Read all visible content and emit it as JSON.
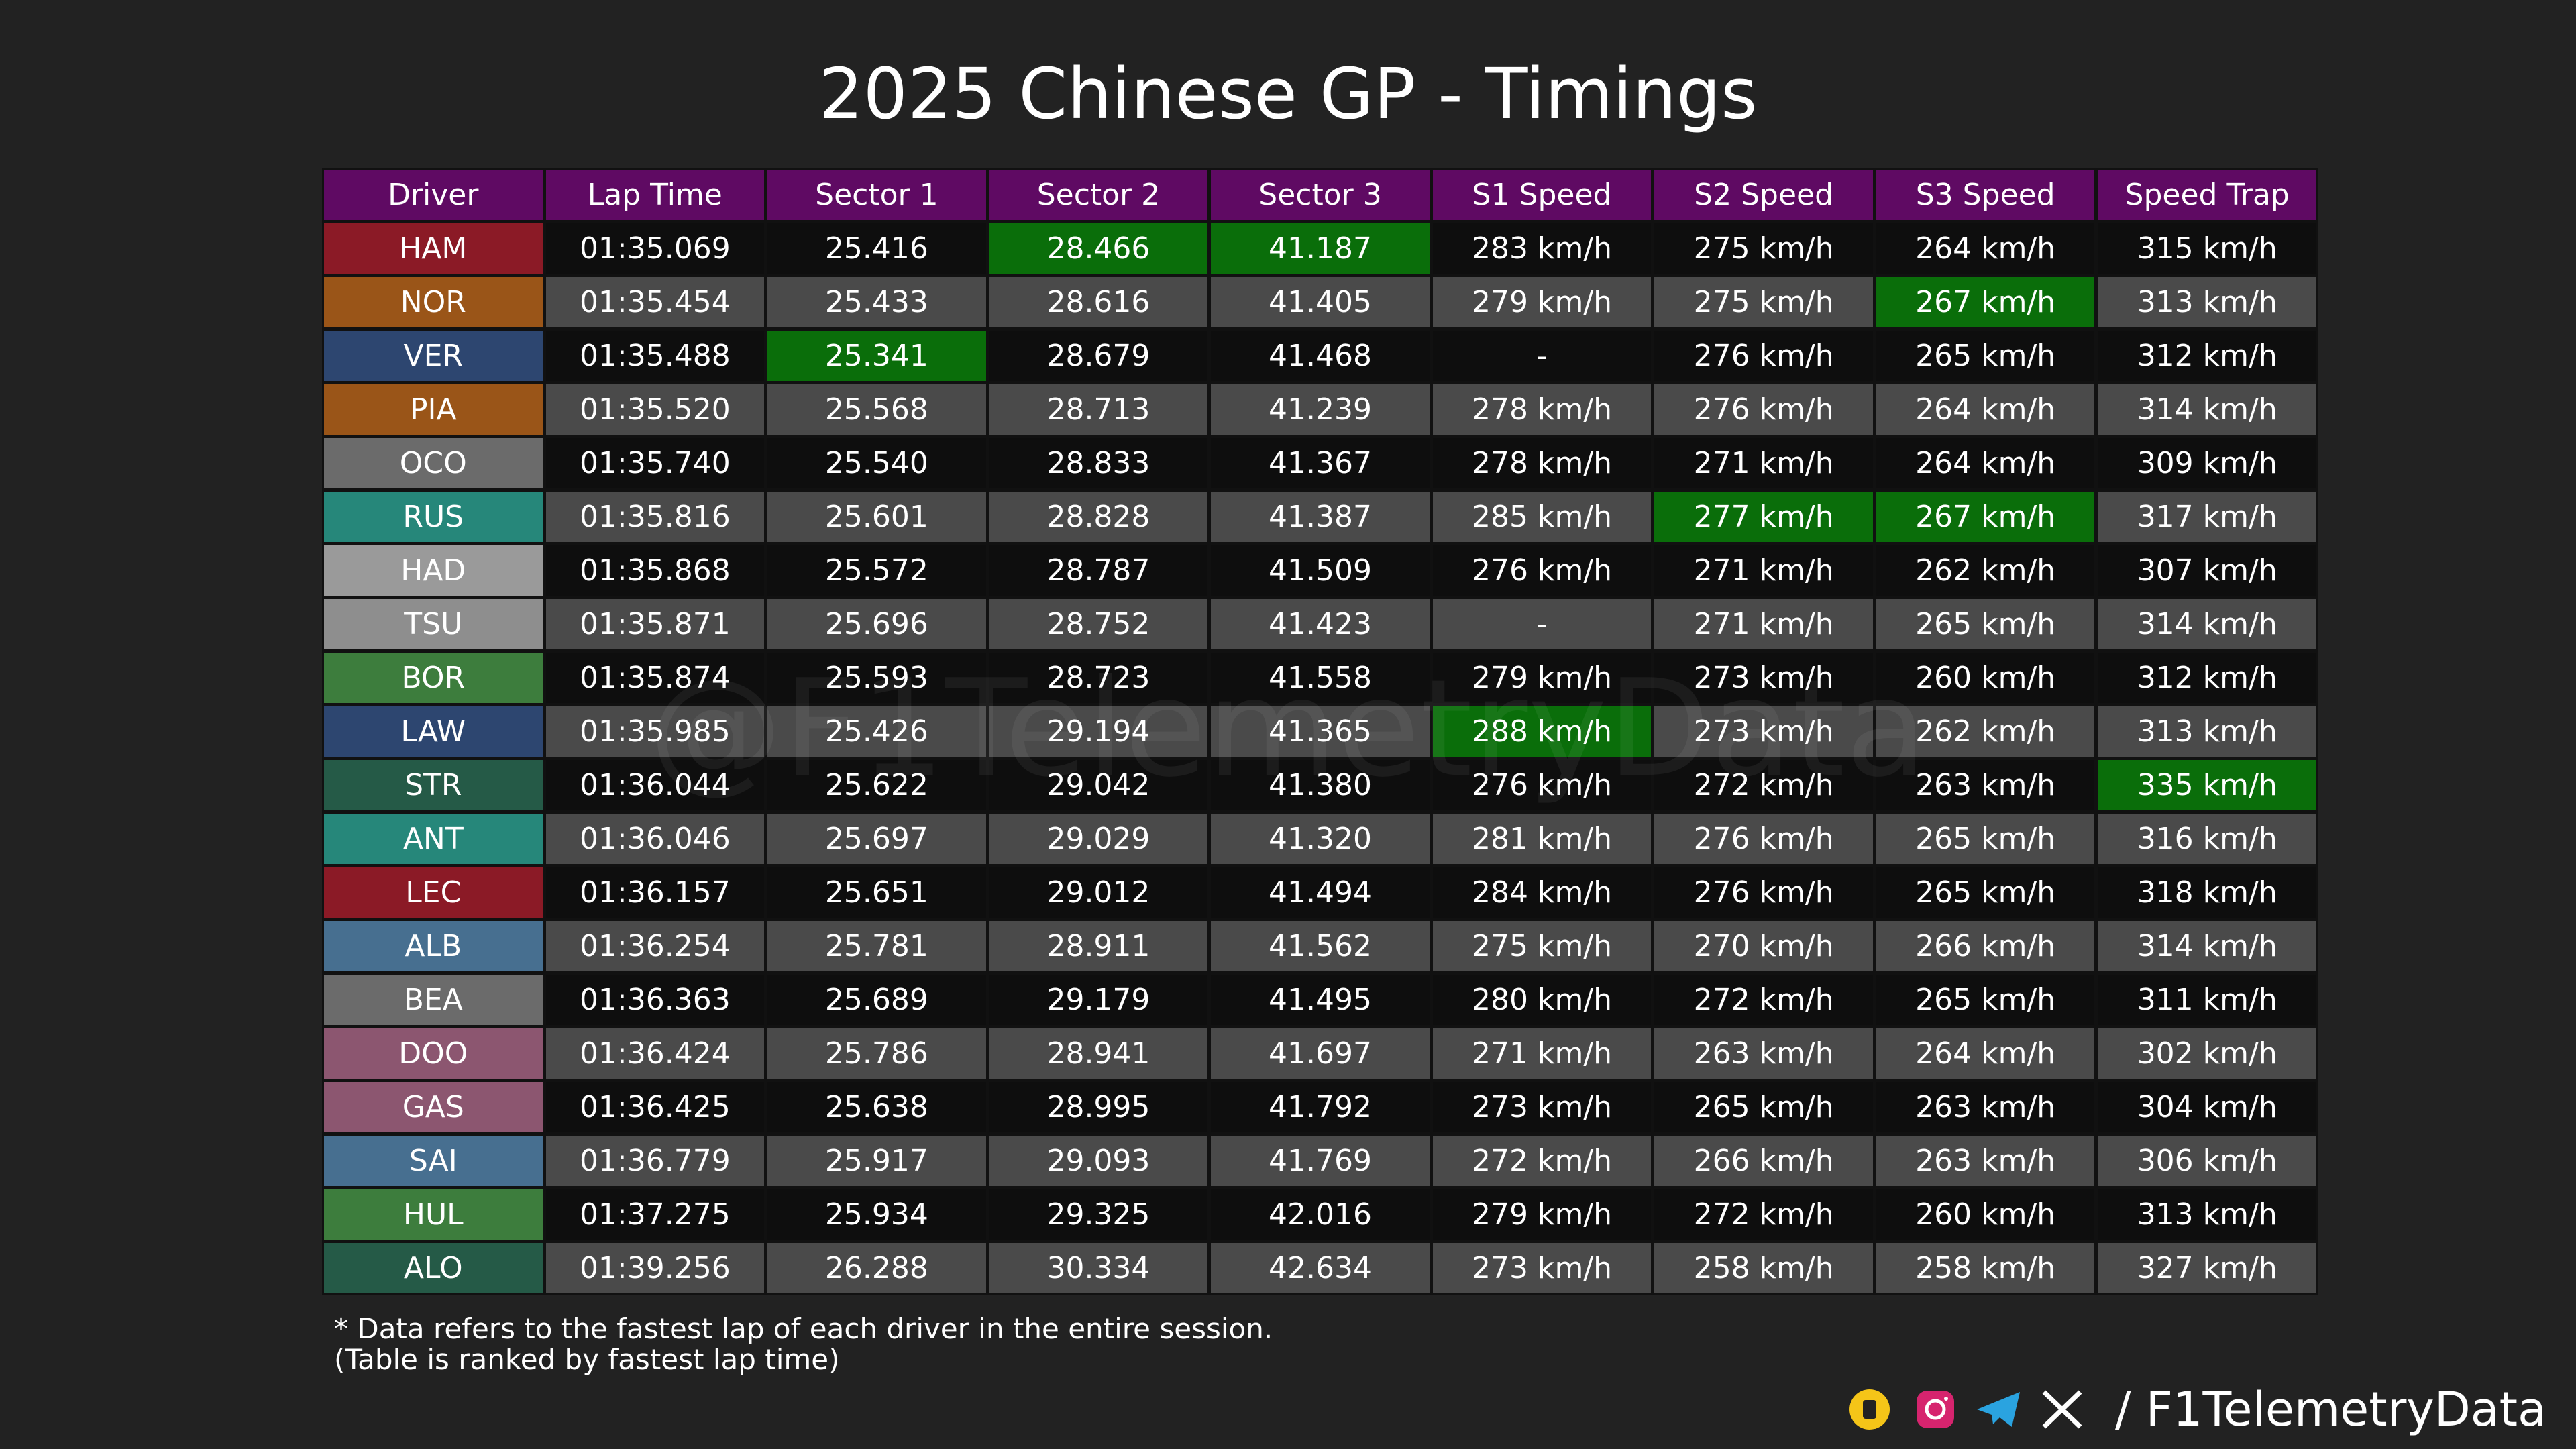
{
  "header": {
    "title": "2025 Chinese GP - Timings"
  },
  "table": {
    "columns": [
      "Driver",
      "Lap Time",
      "Sector 1",
      "Sector 2",
      "Sector 3",
      "S1 Speed",
      "S2 Speed",
      "S3 Speed",
      "Speed Trap"
    ],
    "rows": [
      {
        "color": "#8b1a26",
        "highlight": [
          3,
          4
        ],
        "cells": [
          "HAM",
          "01:35.069",
          "25.416",
          "28.466",
          "41.187",
          "283 km/h",
          "275 km/h",
          "264 km/h",
          "315 km/h"
        ]
      },
      {
        "color": "#9a5518",
        "highlight": [
          7
        ],
        "cells": [
          "NOR",
          "01:35.454",
          "25.433",
          "28.616",
          "41.405",
          "279 km/h",
          "275 km/h",
          "267 km/h",
          "313 km/h"
        ]
      },
      {
        "color": "#2d4670",
        "highlight": [
          2
        ],
        "cells": [
          "VER",
          "01:35.488",
          "25.341",
          "28.679",
          "41.468",
          "-",
          "276 km/h",
          "265 km/h",
          "312 km/h"
        ]
      },
      {
        "color": "#9a5518",
        "cells": [
          "PIA",
          "01:35.520",
          "25.568",
          "28.713",
          "41.239",
          "278 km/h",
          "276 km/h",
          "264 km/h",
          "314 km/h"
        ]
      },
      {
        "color": "#6b6b6b",
        "cells": [
          "OCO",
          "01:35.740",
          "25.540",
          "28.833",
          "41.367",
          "278 km/h",
          "271 km/h",
          "264 km/h",
          "309 km/h"
        ]
      },
      {
        "color": "#26877a",
        "highlight": [
          6,
          7
        ],
        "cells": [
          "RUS",
          "01:35.816",
          "25.601",
          "28.828",
          "41.387",
          "285 km/h",
          "277 km/h",
          "267 km/h",
          "317 km/h"
        ]
      },
      {
        "color": "#9a9a9a",
        "cells": [
          "HAD",
          "01:35.868",
          "25.572",
          "28.787",
          "41.509",
          "276 km/h",
          "271 km/h",
          "262 km/h",
          "307 km/h"
        ]
      },
      {
        "color": "#8e8e8e",
        "cells": [
          "TSU",
          "01:35.871",
          "25.696",
          "28.752",
          "41.423",
          "-",
          "271 km/h",
          "265 km/h",
          "314 km/h"
        ]
      },
      {
        "color": "#3d7d3d",
        "cells": [
          "BOR",
          "01:35.874",
          "25.593",
          "28.723",
          "41.558",
          "279 km/h",
          "273 km/h",
          "260 km/h",
          "312 km/h"
        ]
      },
      {
        "color": "#2d4670",
        "highlight": [
          5
        ],
        "cells": [
          "LAW",
          "01:35.985",
          "25.426",
          "29.194",
          "41.365",
          "288 km/h",
          "273 km/h",
          "262 km/h",
          "313 km/h"
        ]
      },
      {
        "color": "#255a47",
        "highlight": [
          8
        ],
        "cells": [
          "STR",
          "01:36.044",
          "25.622",
          "29.042",
          "41.380",
          "276 km/h",
          "272 km/h",
          "263 km/h",
          "335 km/h"
        ]
      },
      {
        "color": "#26877a",
        "cells": [
          "ANT",
          "01:36.046",
          "25.697",
          "29.029",
          "41.320",
          "281 km/h",
          "276 km/h",
          "265 km/h",
          "316 km/h"
        ]
      },
      {
        "color": "#8b1a26",
        "cells": [
          "LEC",
          "01:36.157",
          "25.651",
          "29.012",
          "41.494",
          "284 km/h",
          "276 km/h",
          "265 km/h",
          "318 km/h"
        ]
      },
      {
        "color": "#476f90",
        "cells": [
          "ALB",
          "01:36.254",
          "25.781",
          "28.911",
          "41.562",
          "275 km/h",
          "270 km/h",
          "266 km/h",
          "314 km/h"
        ]
      },
      {
        "color": "#6b6b6b",
        "cells": [
          "BEA",
          "01:36.363",
          "25.689",
          "29.179",
          "41.495",
          "280 km/h",
          "272 km/h",
          "265 km/h",
          "311 km/h"
        ]
      },
      {
        "color": "#8c5670",
        "cells": [
          "DOO",
          "01:36.424",
          "25.786",
          "28.941",
          "41.697",
          "271 km/h",
          "263 km/h",
          "264 km/h",
          "302 km/h"
        ]
      },
      {
        "color": "#8c5670",
        "cells": [
          "GAS",
          "01:36.425",
          "25.638",
          "28.995",
          "41.792",
          "273 km/h",
          "265 km/h",
          "263 km/h",
          "304 km/h"
        ]
      },
      {
        "color": "#476f90",
        "cells": [
          "SAI",
          "01:36.779",
          "25.917",
          "29.093",
          "41.769",
          "272 km/h",
          "266 km/h",
          "263 km/h",
          "306 km/h"
        ]
      },
      {
        "color": "#3d7d3d",
        "cells": [
          "HUL",
          "01:37.275",
          "25.934",
          "29.325",
          "42.016",
          "279 km/h",
          "272 km/h",
          "260 km/h",
          "313 km/h"
        ]
      },
      {
        "color": "#255a47",
        "cells": [
          "ALO",
          "01:39.256",
          "26.288",
          "30.334",
          "42.634",
          "273 km/h",
          "258 km/h",
          "258 km/h",
          "327 km/h"
        ]
      }
    ]
  },
  "watermark": "@F1TelemetryData",
  "footer": {
    "notes": [
      "* Data refers to the fastest lap of each driver in the entire session.",
      "(Table is ranked by fastest lap time)"
    ],
    "handle": "/ F1TelemetryData"
  }
}
